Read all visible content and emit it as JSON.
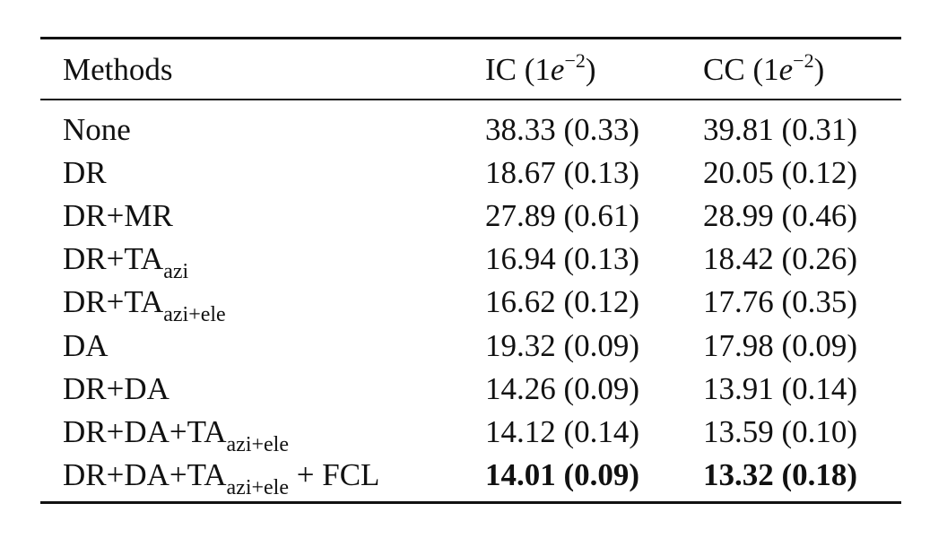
{
  "table": {
    "header": [
      {
        "text": "Methods"
      },
      {
        "text": "IC (1",
        "var": "e",
        "sup": "−2",
        "tail": ")"
      },
      {
        "text": "CC (1",
        "var": "e",
        "sup": "−2",
        "tail": ")"
      }
    ],
    "rows": [
      {
        "method": {
          "text": "None"
        },
        "cells": [
          "38.33 (0.33)",
          "39.81 (0.31)"
        ]
      },
      {
        "method": {
          "text": "DR"
        },
        "cells": [
          "18.67 (0.13)",
          "20.05 (0.12)"
        ]
      },
      {
        "method": {
          "text": "DR+MR"
        },
        "cells": [
          "27.89 (0.61)",
          "28.99 (0.46)"
        ]
      },
      {
        "method": {
          "text": "DR+TA",
          "sub": "azi"
        },
        "cells": [
          "16.94 (0.13)",
          "18.42 (0.26)"
        ]
      },
      {
        "method": {
          "text": "DR+TA",
          "sub": "azi+ele"
        },
        "cells": [
          "16.62 (0.12)",
          "17.76 (0.35)"
        ]
      },
      {
        "method": {
          "text": "DA"
        },
        "cells": [
          "19.32 (0.09)",
          "17.98 (0.09)"
        ]
      },
      {
        "method": {
          "text": "DR+DA"
        },
        "cells": [
          "14.26 (0.09)",
          "13.91 (0.14)"
        ]
      },
      {
        "method": {
          "text": "DR+DA+TA",
          "sub": "azi+ele"
        },
        "cells": [
          "14.12 (0.14)",
          "13.59 (0.10)"
        ]
      },
      {
        "method": {
          "text": "DR+DA+TA",
          "sub": "azi+ele",
          "tail": " + FCL"
        },
        "cells": [
          "14.01 (0.09)",
          "13.32 (0.18)"
        ],
        "bold": true
      }
    ]
  }
}
